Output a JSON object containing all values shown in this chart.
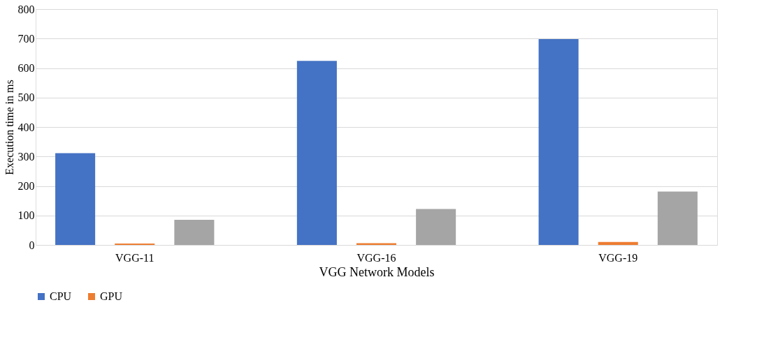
{
  "chart_data": {
    "type": "bar",
    "xlabel": "VGG Network Models",
    "ylabel": "Execution time in ms",
    "categories": [
      "VGG-11",
      "VGG-16",
      "VGG-19"
    ],
    "series": [
      {
        "name": "CPU",
        "color": "#4472c4",
        "values": [
          311,
          624,
          698
        ]
      },
      {
        "name": "GPU",
        "color": "#ed7d31",
        "values": [
          5,
          6,
          10
        ]
      },
      {
        "color": "#a5a5a5",
        "values": [
          85,
          122,
          181
        ]
      }
    ],
    "ylim": [
      0,
      800
    ],
    "yticks": [
      0,
      100,
      200,
      300,
      400,
      500,
      600,
      700,
      800
    ],
    "grid": "y",
    "legend": "bottom"
  }
}
